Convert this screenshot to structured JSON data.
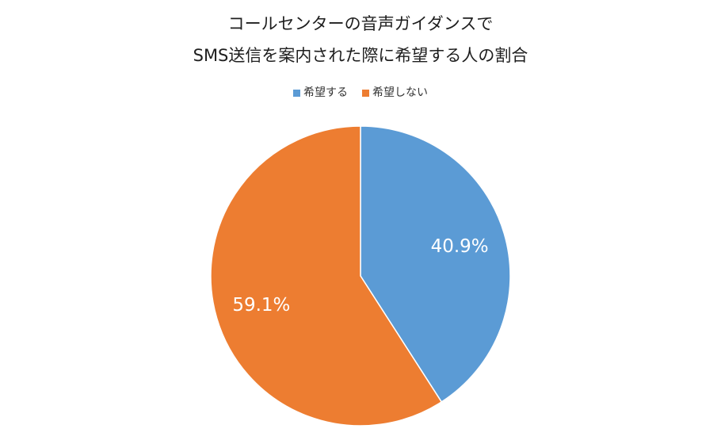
{
  "chart_data": {
    "type": "pie",
    "title": [
      "コールセンターの音声ガイダンスで",
      "SMS送信を案内された際に希望する人の割合"
    ],
    "categories": [
      "希望する",
      "希望しない"
    ],
    "values": [
      40.9,
      59.1
    ],
    "data_labels": [
      "40.9%",
      "59.1%"
    ],
    "colors": [
      "#5b9bd5",
      "#ed7d31"
    ],
    "legend_position": "top",
    "start_angle": "top",
    "direction": "clockwise"
  }
}
